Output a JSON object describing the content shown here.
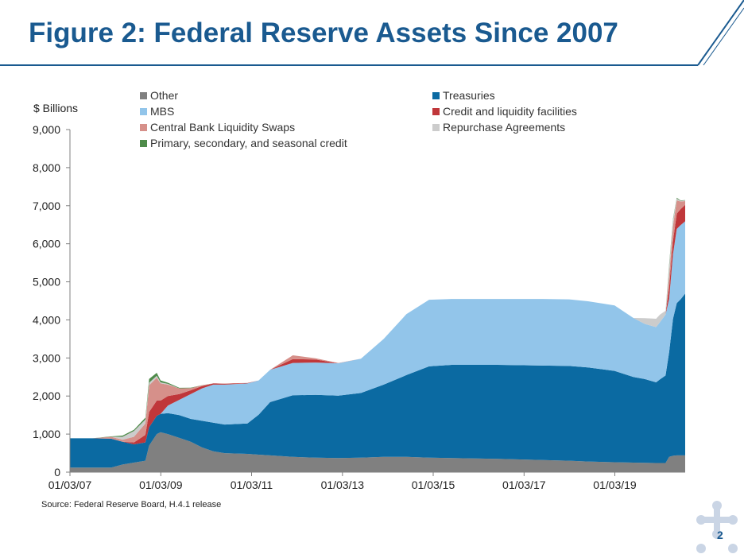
{
  "slide": {
    "title": "Figure 2: Federal Reserve Assets Since 2007",
    "source": "Source: Federal Reserve Board, H.4.1 release",
    "page_number": "2",
    "colors": {
      "title": "#1a5a90",
      "rule": "#1a5a90"
    }
  },
  "chart_data": {
    "type": "area",
    "stacked": true,
    "ylabel": "$ Billions",
    "xlabel": "",
    "ylim": [
      0,
      9000
    ],
    "yticks": [
      0,
      1000,
      2000,
      3000,
      4000,
      5000,
      6000,
      7000,
      8000,
      9000
    ],
    "ytick_labels": [
      "0",
      "1,000",
      "2,000",
      "3,000",
      "4,000",
      "5,000",
      "6,000",
      "7,000",
      "8,000",
      "9,000"
    ],
    "xlim": [
      "2007-01-03",
      "2020-07-22"
    ],
    "xticks": [
      "2007-01-03",
      "2009-01-03",
      "2011-01-03",
      "2013-01-03",
      "2015-01-03",
      "2017-01-03",
      "2019-01-03"
    ],
    "xtick_labels": [
      "01/03/07",
      "01/03/09",
      "01/03/11",
      "01/03/13",
      "01/03/15",
      "01/03/17",
      "01/03/19"
    ],
    "legend_position": "top",
    "x": [
      "2007-01-03",
      "2007-07-01",
      "2007-12-01",
      "2008-03-01",
      "2008-06-01",
      "2008-09-01",
      "2008-10-01",
      "2008-12-01",
      "2009-01-01",
      "2009-03-01",
      "2009-06-01",
      "2009-09-01",
      "2009-12-01",
      "2010-03-01",
      "2010-06-01",
      "2010-12-01",
      "2011-03-01",
      "2011-06-01",
      "2011-12-01",
      "2012-06-01",
      "2012-12-01",
      "2013-06-01",
      "2013-12-01",
      "2014-06-01",
      "2014-12-01",
      "2015-06-01",
      "2016-06-01",
      "2017-06-01",
      "2018-01-01",
      "2018-06-01",
      "2019-01-01",
      "2019-06-01",
      "2019-09-01",
      "2019-12-01",
      "2020-01-01",
      "2020-02-15",
      "2020-03-15",
      "2020-04-15",
      "2020-05-15",
      "2020-06-15",
      "2020-07-22"
    ],
    "series": [
      {
        "name": "Other",
        "color": "#808080",
        "values": [
          120,
          120,
          120,
          200,
          250,
          300,
          700,
          1000,
          1050,
          1000,
          900,
          800,
          650,
          550,
          500,
          480,
          460,
          440,
          400,
          380,
          370,
          380,
          400,
          400,
          380,
          370,
          350,
          320,
          300,
          280,
          260,
          250,
          245,
          240,
          240,
          240,
          400,
          430,
          440,
          440,
          440
        ]
      },
      {
        "name": "Treasuries",
        "color": "#0b6aa2",
        "values": [
          770,
          770,
          760,
          600,
          480,
          480,
          480,
          480,
          480,
          550,
          600,
          600,
          700,
          750,
          750,
          800,
          1050,
          1400,
          1620,
          1650,
          1640,
          1700,
          1900,
          2150,
          2400,
          2450,
          2470,
          2480,
          2490,
          2470,
          2400,
          2250,
          2200,
          2120,
          2200,
          2300,
          2750,
          3600,
          4000,
          4100,
          4250
        ]
      },
      {
        "name": "MBS",
        "color": "#92c5ea",
        "values": [
          0,
          0,
          0,
          0,
          0,
          0,
          0,
          0,
          0,
          200,
          400,
          650,
          850,
          1000,
          1050,
          1050,
          900,
          850,
          850,
          850,
          850,
          900,
          1200,
          1600,
          1750,
          1730,
          1730,
          1750,
          1750,
          1740,
          1720,
          1550,
          1450,
          1450,
          1500,
          1600,
          1400,
          1700,
          1950,
          1950,
          1900
        ]
      },
      {
        "name": "Credit and liquidity facilities",
        "color": "#c0373a",
        "values": [
          0,
          0,
          0,
          0,
          50,
          200,
          400,
          400,
          350,
          250,
          150,
          100,
          60,
          30,
          20,
          10,
          0,
          0,
          100,
          80,
          0,
          0,
          0,
          0,
          0,
          0,
          0,
          0,
          0,
          0,
          0,
          0,
          0,
          0,
          0,
          0,
          300,
          350,
          400,
          420,
          430
        ]
      },
      {
        "name": "Central Bank Liquidity Swaps",
        "color": "#d6908a",
        "values": [
          0,
          0,
          50,
          50,
          150,
          300,
          700,
          600,
          450,
          300,
          150,
          60,
          20,
          5,
          10,
          5,
          0,
          0,
          100,
          30,
          10,
          0,
          0,
          0,
          0,
          0,
          0,
          0,
          0,
          0,
          0,
          0,
          0,
          0,
          0,
          0,
          300,
          400,
          350,
          200,
          100
        ]
      },
      {
        "name": "Repurchase Agreements",
        "color": "#cccccc",
        "values": [
          0,
          0,
          0,
          80,
          150,
          100,
          70,
          50,
          30,
          20,
          0,
          0,
          0,
          0,
          0,
          0,
          0,
          0,
          0,
          0,
          0,
          0,
          0,
          0,
          0,
          0,
          0,
          0,
          0,
          0,
          0,
          0,
          150,
          220,
          200,
          100,
          250,
          150,
          50,
          20,
          20
        ]
      },
      {
        "name": "Primary, secondary, and seasonal credit",
        "color": "#4e8b4a",
        "values": [
          0,
          0,
          10,
          30,
          30,
          50,
          100,
          80,
          50,
          30,
          15,
          10,
          5,
          0,
          0,
          0,
          0,
          0,
          0,
          0,
          0,
          0,
          0,
          0,
          0,
          0,
          0,
          0,
          0,
          0,
          0,
          0,
          0,
          0,
          0,
          0,
          50,
          30,
          20,
          10,
          5
        ]
      }
    ]
  }
}
